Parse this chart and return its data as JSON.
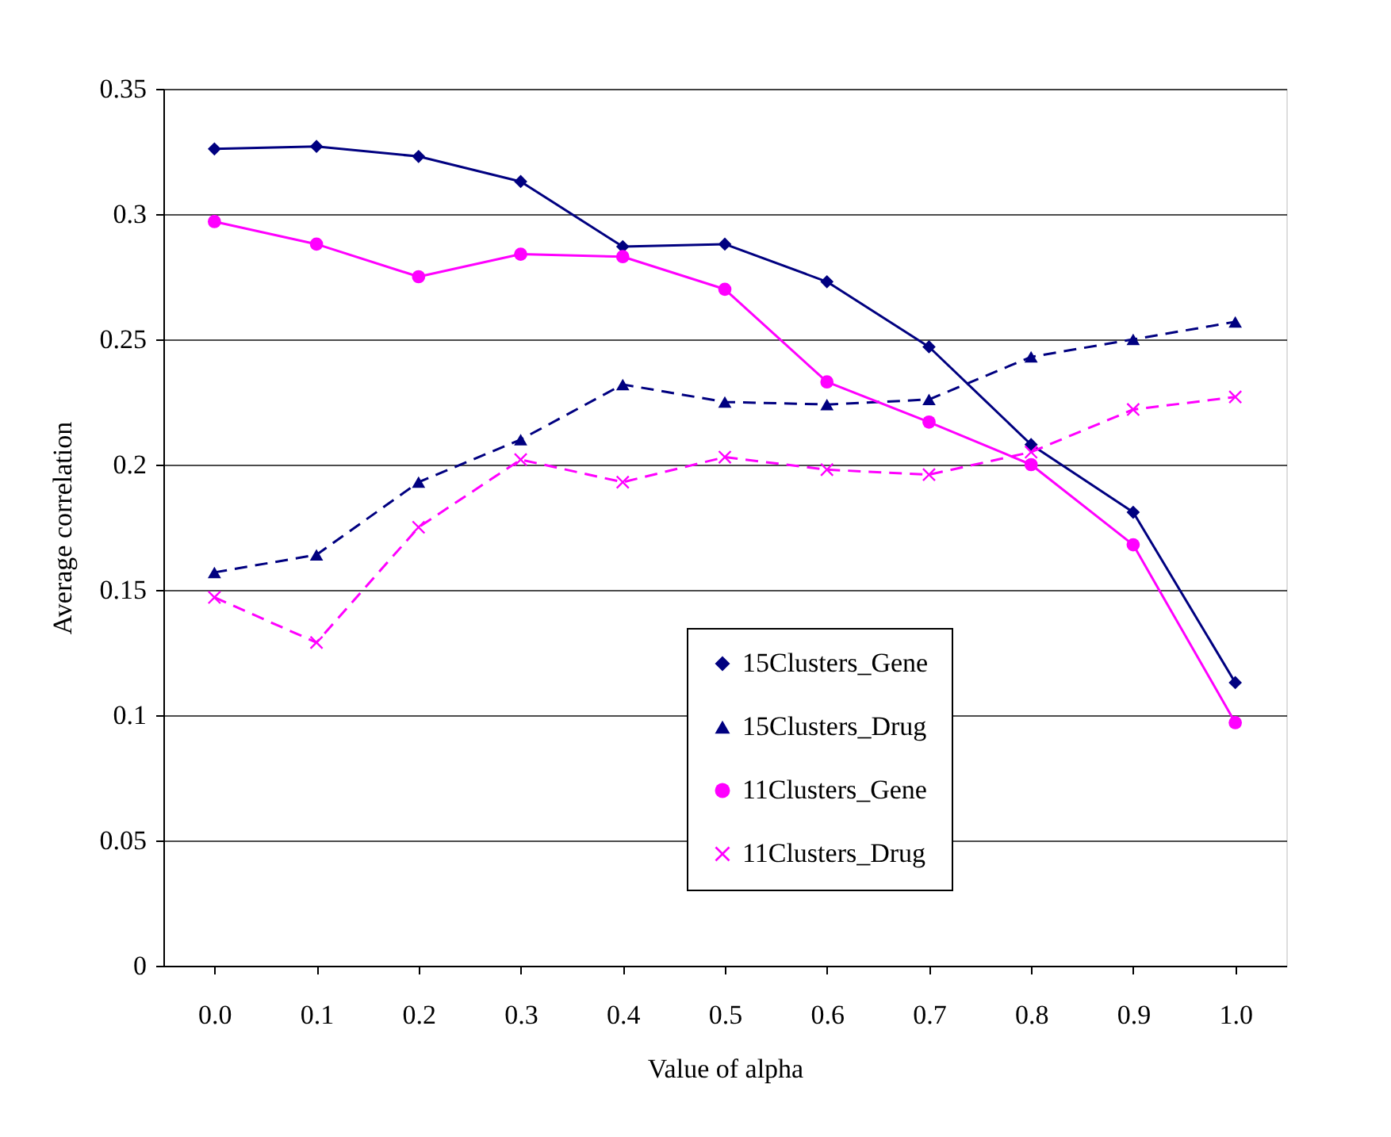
{
  "chart_data": {
    "type": "line",
    "xlabel": "Value of alpha",
    "ylabel": "Average correlation",
    "categories": [
      "0.0",
      "0.1",
      "0.2",
      "0.3",
      "0.4",
      "0.5",
      "0.6",
      "0.7",
      "0.8",
      "0.9",
      "1.0"
    ],
    "series": [
      {
        "name": "15Clusters_Gene",
        "color": "#000080",
        "marker": "diamond",
        "line_style": "solid",
        "values": [
          0.326,
          0.327,
          0.323,
          0.313,
          0.287,
          0.288,
          0.273,
          0.247,
          0.208,
          0.181,
          0.113
        ]
      },
      {
        "name": "15Clusters_Drug",
        "color": "#000080",
        "marker": "triangle",
        "line_style": "dashed",
        "values": [
          0.157,
          0.164,
          0.193,
          0.21,
          0.232,
          0.225,
          0.224,
          0.226,
          0.243,
          0.25,
          0.257
        ]
      },
      {
        "name": "11Clusters_Gene",
        "color": "#ff00ff",
        "marker": "circle",
        "line_style": "solid",
        "values": [
          0.297,
          0.288,
          0.275,
          0.284,
          0.283,
          0.27,
          0.233,
          0.217,
          0.2,
          0.168,
          0.097
        ]
      },
      {
        "name": "11Clusters_Drug",
        "color": "#ff00ff",
        "marker": "cross",
        "line_style": "dashed",
        "values": [
          0.147,
          0.129,
          0.175,
          0.202,
          0.193,
          0.203,
          0.198,
          0.196,
          0.205,
          0.222,
          0.227
        ]
      }
    ],
    "ylim": [
      0,
      0.35
    ],
    "yticks": [
      0,
      0.05,
      0.1,
      0.15,
      0.2,
      0.25,
      0.3,
      0.35
    ],
    "grid": "y",
    "legend": "bottom right"
  }
}
